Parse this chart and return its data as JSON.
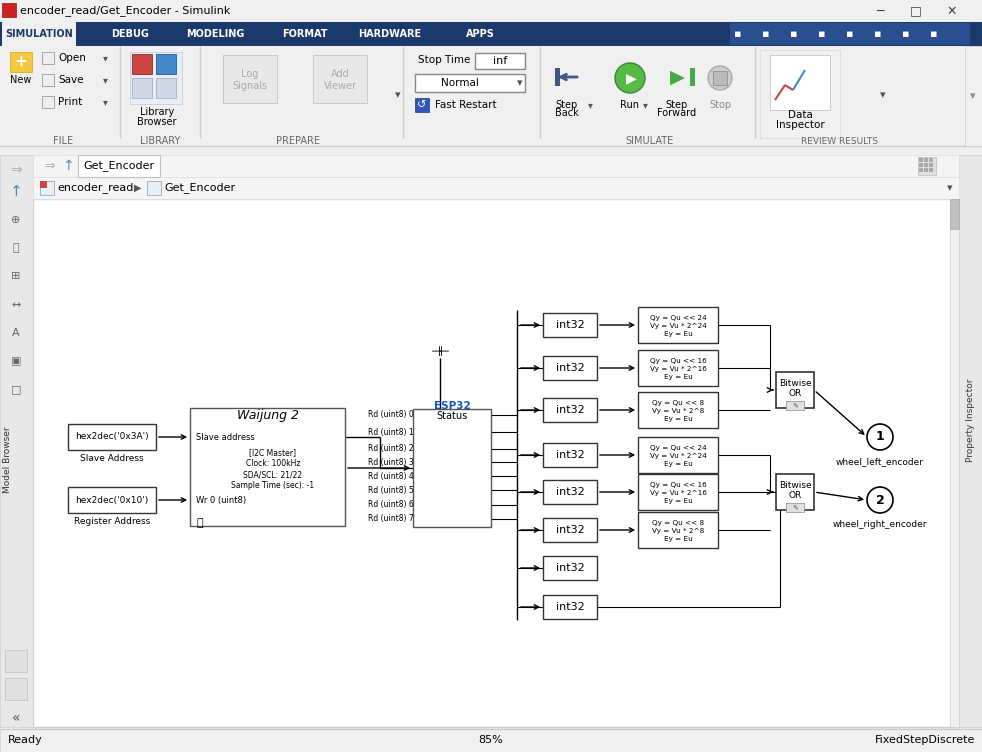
{
  "title_bar": "encoder_read/Get_Encoder - Simulink",
  "bg_color": "#f0f0f0",
  "toolbar_bg": "#1b3a6b",
  "canvas_bg": "#ffffff",
  "status_bar_text_left": "Ready",
  "status_bar_text_center": "85%",
  "status_bar_text_right": "FixedStepDiscrete",
  "toolbar_tabs": [
    "SIMULATION",
    "DEBUG",
    "MODELING",
    "FORMAT",
    "HARDWARE",
    "APPS"
  ],
  "tab_text": "Get_Encoder",
  "diagram": {
    "hex_slave": "hex2dec('0x3A')",
    "hex_slave_label": "Slave Address",
    "hex_reg": "hex2dec('0x10')",
    "hex_reg_label": "Register Address",
    "waijung_title": "Waijung 2",
    "waijung_port1": "Slave address",
    "waijung_port2": "Wr 0 (uint8)",
    "waijung_info": "[I2C Master]\nClock: 100kHz\nSDA/SCL: 21/22\nSample Time (sec): -1",
    "esp32_title": "ESP32",
    "esp32_sub": "Status",
    "esp_ports": [
      "Rd (uint8) 0",
      "Rd (uint8) 1",
      "Rd (uint8) 2",
      "Rd (uint8) 3",
      "Rd (uint8) 4",
      "Rd (uint8) 5",
      "Rd (uint8) 6",
      "Rd (uint8) 7"
    ],
    "math_blocks_left": [
      [
        "Qy = Qu << 24",
        "Vy = Vu * 2^24",
        "Ey = Eu"
      ],
      [
        "Qy = Qu << 16",
        "Vy = Vu * 2^16",
        "Ey = Eu"
      ],
      [
        "Qy = Qu << 8",
        "Vy = Vu * 2^8",
        "Ey = Eu"
      ]
    ],
    "math_blocks_right": [
      [
        "Qy = Qu << 24",
        "Vy = Vu * 2^24",
        "Ey = Eu"
      ],
      [
        "Qy = Qu << 16",
        "Vy = Vu * 2^16",
        "Ey = Eu"
      ],
      [
        "Qy = Qu << 8",
        "Vy = Vu * 2^8",
        "Ey = Eu"
      ]
    ],
    "out1_label": "wheel_left_encoder",
    "out2_label": "wheel_right_encoder"
  }
}
